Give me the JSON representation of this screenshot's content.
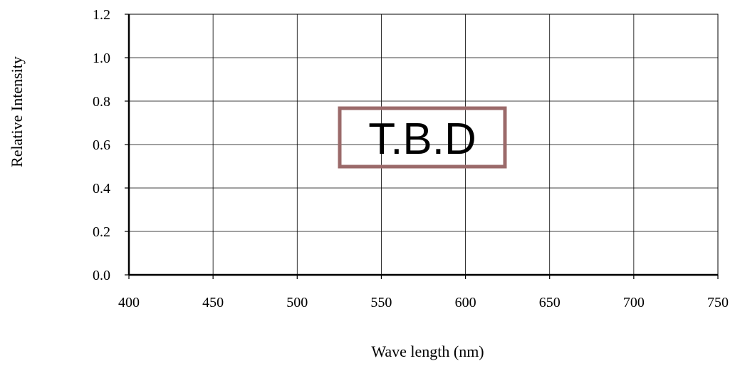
{
  "chart_data": {
    "type": "line",
    "title": "",
    "xlabel": "Wave length (nm)",
    "ylabel": "Relative Intensity",
    "xlim": [
      400,
      750
    ],
    "ylim": [
      0.0,
      1.2
    ],
    "x_ticks": [
      "400",
      "450",
      "500",
      "550",
      "600",
      "650",
      "700",
      "750"
    ],
    "y_ticks": [
      "0.0",
      "0.2",
      "0.4",
      "0.6",
      "0.8",
      "1.0",
      "1.2"
    ],
    "grid": true,
    "series": [],
    "annotations": [
      {
        "text": "T.B.D",
        "style": "boxed-stamp",
        "color": "#9b6a6a",
        "placement": "center"
      }
    ]
  }
}
